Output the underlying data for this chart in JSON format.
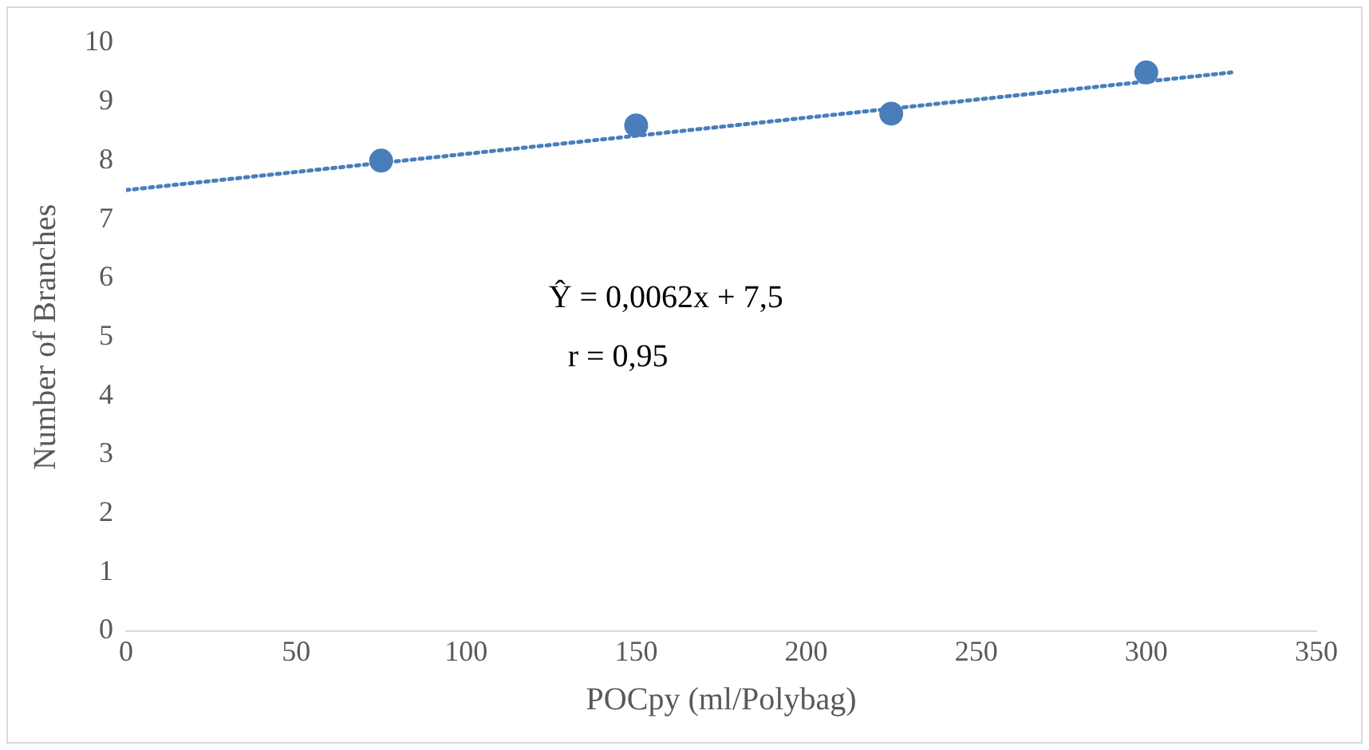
{
  "chart_data": {
    "type": "scatter",
    "xlabel": "POCpy (ml/Polybag)",
    "ylabel": "Number of Branches",
    "xlim": [
      0,
      350
    ],
    "xticks": [
      0,
      50,
      100,
      150,
      200,
      250,
      300,
      350
    ],
    "ylim": [
      0,
      10
    ],
    "yticks": [
      0,
      1,
      2,
      3,
      4,
      5,
      6,
      7,
      8,
      9,
      10
    ],
    "grid": false,
    "legend": false,
    "series": [
      {
        "color": "#4a7ebb",
        "x": [
          75,
          150,
          225,
          300
        ],
        "values": [
          8.0,
          8.6,
          8.8,
          9.5
        ],
        "marker": "circle"
      },
      {
        "type": "line",
        "color": "#4a7ebb",
        "x": [
          0,
          325
        ],
        "values": [
          7.5,
          9.5
        ],
        "marker": "none",
        "line_style": "dotted"
      }
    ],
    "annotations": [
      "Ŷ = 0,0062x + 7,5",
      "r = 0,95"
    ]
  }
}
